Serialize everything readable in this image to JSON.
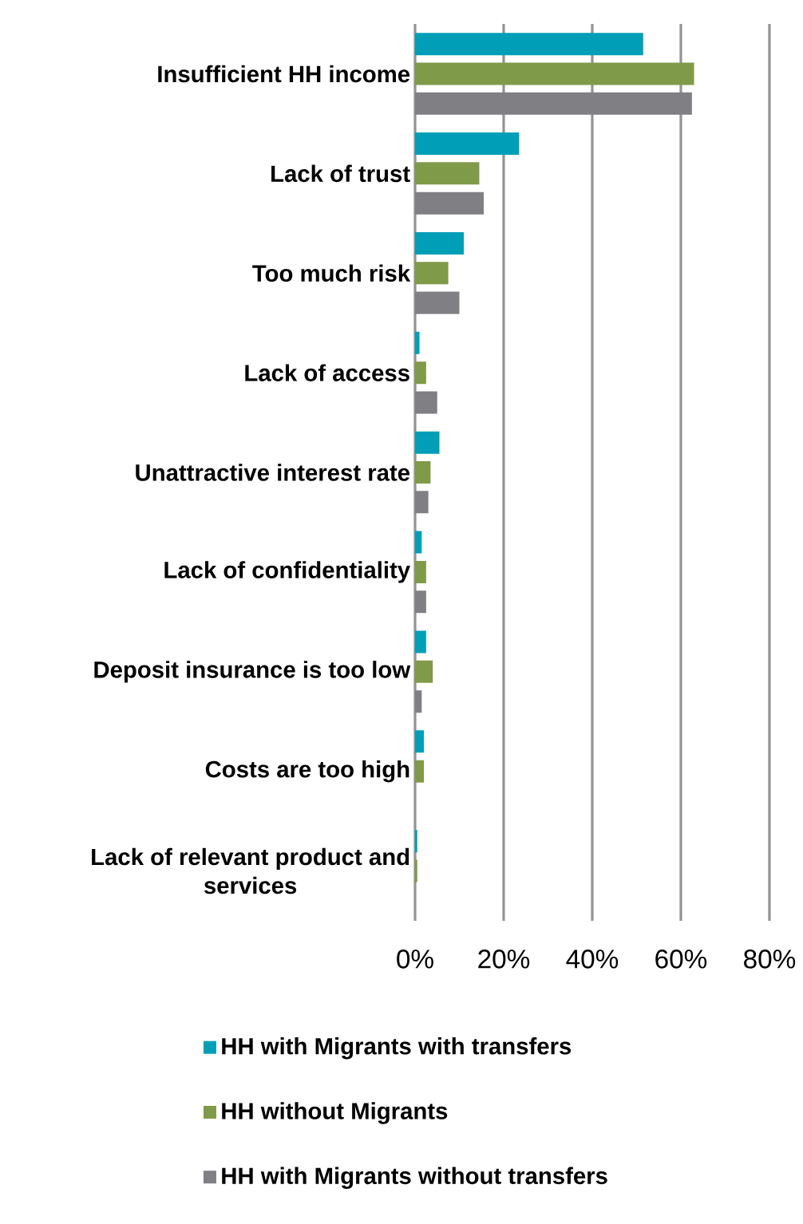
{
  "chart_data": {
    "type": "bar",
    "orientation": "horizontal",
    "categories": [
      "Insufficient HH income",
      "Lack of trust",
      "Too much risk",
      "Lack of access",
      "Unattractive interest rate",
      "Lack of confidentiality",
      "Deposit insurance is too low",
      "Costs are too high",
      "Lack of relevant product and services"
    ],
    "series": [
      {
        "name": "HH with Migrants with transfers",
        "color": "#009fb7",
        "values": [
          51.5,
          23.5,
          11,
          1,
          5.5,
          1.5,
          2.5,
          2,
          0.5
        ]
      },
      {
        "name": "HH without Migrants",
        "color": "#7f9a48",
        "values": [
          63,
          14.5,
          7.5,
          2.5,
          3.5,
          2.5,
          4,
          2,
          0.5
        ]
      },
      {
        "name": "HH with Migrants without transfers",
        "color": "#7f7f84",
        "values": [
          62.5,
          15.5,
          10,
          5,
          3,
          2.5,
          1.5,
          null,
          null
        ]
      }
    ],
    "xlim": [
      0,
      80
    ],
    "xticks": [
      {
        "value": 0,
        "label": "0%"
      },
      {
        "value": 20,
        "label": "20%"
      },
      {
        "value": 40,
        "label": "40%"
      },
      {
        "value": 60,
        "label": "60%"
      },
      {
        "value": 80,
        "label": "80%"
      }
    ],
    "grid": "x",
    "legend": "bottom"
  }
}
